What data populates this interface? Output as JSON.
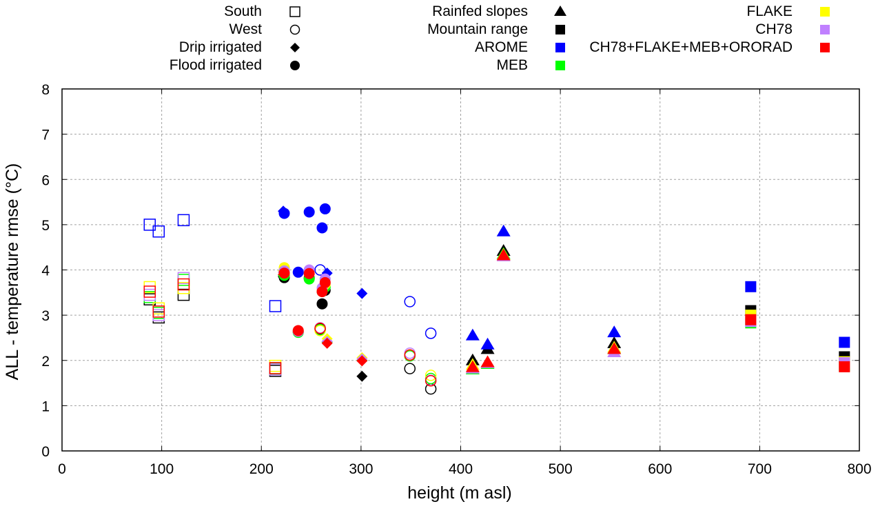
{
  "chart_data": {
    "type": "scatter",
    "title": "",
    "xlabel": "height (m asl)",
    "ylabel": "ALL - temperature rmse (°C)",
    "xlim": [
      0,
      800
    ],
    "ylim": [
      0,
      8
    ],
    "xticks": [
      "0",
      "100",
      "200",
      "300",
      "400",
      "500",
      "600",
      "700",
      "800"
    ],
    "yticks": [
      "0",
      "1",
      "2",
      "3",
      "4",
      "5",
      "6",
      "7",
      "8"
    ],
    "grid": true,
    "legend_placement": "top, outside plot",
    "legend_shapes": [
      {
        "label": "South",
        "symbol": "open-square"
      },
      {
        "label": "West",
        "symbol": "open-circle"
      },
      {
        "label": "Drip irrigated",
        "symbol": "filled-diamond"
      },
      {
        "label": "Flood irrigated",
        "symbol": "filled-circle"
      },
      {
        "label": "Rainfed slopes",
        "symbol": "filled-triangle"
      },
      {
        "label": "Mountain range",
        "symbol": "filled-square"
      }
    ],
    "legend_models": [
      {
        "label": "AROME",
        "color": "#0000ff"
      },
      {
        "label": "MEB",
        "color": "#00ff00"
      },
      {
        "label": "FLAKE",
        "color": "#ffff00"
      },
      {
        "label": "CH78",
        "color": "#c080ff"
      },
      {
        "label": "CH78+FLAKE+MEB+ORORAD",
        "color": "#ff0000"
      }
    ],
    "reference_color": "#000000",
    "series": [
      {
        "name": "South",
        "symbol": "open-square",
        "points": [
          {
            "x": 88,
            "model": "AROME",
            "y": 5.0
          },
          {
            "x": 88,
            "model": "reference",
            "y": 3.35
          },
          {
            "x": 88,
            "model": "MEB",
            "y": 3.4
          },
          {
            "x": 88,
            "model": "FLAKE",
            "y": 3.62
          },
          {
            "x": 88,
            "model": "CH78",
            "y": 3.45
          },
          {
            "x": 88,
            "model": "CH78+FLAKE+MEB+ORORAD",
            "y": 3.52
          },
          {
            "x": 97,
            "model": "AROME",
            "y": 4.85
          },
          {
            "x": 97,
            "model": "reference",
            "y": 2.95
          },
          {
            "x": 97,
            "model": "MEB",
            "y": 3.05
          },
          {
            "x": 97,
            "model": "FLAKE",
            "y": 3.15
          },
          {
            "x": 97,
            "model": "CH78",
            "y": 3.0
          },
          {
            "x": 97,
            "model": "CH78+FLAKE+MEB+ORORAD",
            "y": 3.08
          },
          {
            "x": 122,
            "model": "AROME",
            "y": 5.1
          },
          {
            "x": 122,
            "model": "reference",
            "y": 3.45
          },
          {
            "x": 122,
            "model": "MEB",
            "y": 3.78
          },
          {
            "x": 122,
            "model": "FLAKE",
            "y": 3.6
          },
          {
            "x": 122,
            "model": "CH78",
            "y": 3.82
          },
          {
            "x": 122,
            "model": "CH78+FLAKE+MEB+ORORAD",
            "y": 3.68
          },
          {
            "x": 214,
            "model": "AROME",
            "y": 3.2
          },
          {
            "x": 214,
            "model": "reference",
            "y": 1.77
          },
          {
            "x": 214,
            "model": "MEB",
            "y": 1.82
          },
          {
            "x": 214,
            "model": "FLAKE",
            "y": 1.88
          },
          {
            "x": 214,
            "model": "CH78",
            "y": 1.8
          },
          {
            "x": 214,
            "model": "CH78+FLAKE+MEB+ORORAD",
            "y": 1.83
          }
        ]
      },
      {
        "name": "West",
        "symbol": "open-circle",
        "points": [
          {
            "x": 259,
            "model": "AROME",
            "y": 4.0
          },
          {
            "x": 259,
            "model": "reference",
            "y": 2.7
          },
          {
            "x": 259,
            "model": "MEB",
            "y": 2.68
          },
          {
            "x": 259,
            "model": "FLAKE",
            "y": 2.66
          },
          {
            "x": 259,
            "model": "CH78",
            "y": 2.72
          },
          {
            "x": 259,
            "model": "CH78+FLAKE+MEB+ORORAD",
            "y": 2.71
          },
          {
            "x": 349,
            "model": "AROME",
            "y": 3.3
          },
          {
            "x": 349,
            "model": "reference",
            "y": 1.82
          },
          {
            "x": 349,
            "model": "MEB",
            "y": 2.1
          },
          {
            "x": 349,
            "model": "FLAKE",
            "y": 2.12
          },
          {
            "x": 349,
            "model": "CH78",
            "y": 2.16
          },
          {
            "x": 349,
            "model": "CH78+FLAKE+MEB+ORORAD",
            "y": 2.12
          },
          {
            "x": 370,
            "model": "AROME",
            "y": 2.6
          },
          {
            "x": 370,
            "model": "reference",
            "y": 1.37
          },
          {
            "x": 370,
            "model": "MEB",
            "y": 1.6
          },
          {
            "x": 370,
            "model": "FLAKE",
            "y": 1.67
          },
          {
            "x": 370,
            "model": "CH78",
            "y": 1.56
          },
          {
            "x": 370,
            "model": "CH78+FLAKE+MEB+ORORAD",
            "y": 1.55
          }
        ]
      },
      {
        "name": "Drip irrigated",
        "symbol": "filled-diamond",
        "points": [
          {
            "x": 222,
            "model": "AROME",
            "y": 5.3
          },
          {
            "x": 222,
            "model": "reference",
            "y": 3.85
          },
          {
            "x": 222,
            "model": "MEB",
            "y": 3.88
          },
          {
            "x": 222,
            "model": "FLAKE",
            "y": 3.98
          },
          {
            "x": 222,
            "model": "CH78",
            "y": 3.95
          },
          {
            "x": 222,
            "model": "CH78+FLAKE+MEB+ORORAD",
            "y": 3.9
          },
          {
            "x": 266,
            "model": "AROME",
            "y": 3.93
          },
          {
            "x": 266,
            "model": "reference",
            "y": 2.42
          },
          {
            "x": 266,
            "model": "MEB",
            "y": 2.4
          },
          {
            "x": 266,
            "model": "FLAKE",
            "y": 2.48
          },
          {
            "x": 266,
            "model": "CH78",
            "y": 2.42
          },
          {
            "x": 266,
            "model": "CH78+FLAKE+MEB+ORORAD",
            "y": 2.38
          },
          {
            "x": 301,
            "model": "AROME",
            "y": 3.48
          },
          {
            "x": 301,
            "model": "reference",
            "y": 1.65
          },
          {
            "x": 301,
            "model": "MEB",
            "y": 2.0
          },
          {
            "x": 301,
            "model": "FLAKE",
            "y": 2.06
          },
          {
            "x": 301,
            "model": "CH78",
            "y": 2.03
          },
          {
            "x": 301,
            "model": "CH78+FLAKE+MEB+ORORAD",
            "y": 1.99
          }
        ]
      },
      {
        "name": "Flood irrigated",
        "symbol": "filled-circle",
        "points": [
          {
            "x": 223,
            "model": "AROME",
            "y": 5.25
          },
          {
            "x": 223,
            "model": "reference",
            "y": 3.83
          },
          {
            "x": 223,
            "model": "MEB",
            "y": 3.88
          },
          {
            "x": 223,
            "model": "FLAKE",
            "y": 4.05
          },
          {
            "x": 223,
            "model": "CH78",
            "y": 3.98
          },
          {
            "x": 223,
            "model": "CH78+FLAKE+MEB+ORORAD",
            "y": 3.93
          },
          {
            "x": 237,
            "model": "AROME",
            "y": 3.95
          },
          {
            "x": 237,
            "model": "reference",
            "y": 2.63
          },
          {
            "x": 237,
            "model": "MEB",
            "y": 2.62
          },
          {
            "x": 237,
            "model": "FLAKE",
            "y": 2.65
          },
          {
            "x": 237,
            "model": "CH78",
            "y": 2.64
          },
          {
            "x": 237,
            "model": "CH78+FLAKE+MEB+ORORAD",
            "y": 2.66
          },
          {
            "x": 248,
            "model": "AROME",
            "y": 5.28
          },
          {
            "x": 248,
            "model": "reference",
            "y": 3.82
          },
          {
            "x": 248,
            "model": "MEB",
            "y": 3.8
          },
          {
            "x": 248,
            "model": "FLAKE",
            "y": 3.95
          },
          {
            "x": 248,
            "model": "CH78",
            "y": 4.0
          },
          {
            "x": 248,
            "model": "CH78+FLAKE+MEB+ORORAD",
            "y": 3.92
          },
          {
            "x": 261,
            "model": "AROME",
            "y": 4.93
          },
          {
            "x": 261,
            "model": "reference",
            "y": 3.25
          },
          {
            "x": 261,
            "model": "MEB",
            "y": 3.52
          },
          {
            "x": 261,
            "model": "FLAKE",
            "y": 3.58
          },
          {
            "x": 261,
            "model": "CH78",
            "y": 3.6
          },
          {
            "x": 261,
            "model": "CH78+FLAKE+MEB+ORORAD",
            "y": 3.52
          },
          {
            "x": 264,
            "model": "AROME",
            "y": 5.35
          },
          {
            "x": 264,
            "model": "reference",
            "y": 3.55
          },
          {
            "x": 264,
            "model": "MEB",
            "y": 3.62
          },
          {
            "x": 264,
            "model": "FLAKE",
            "y": 3.68
          },
          {
            "x": 264,
            "model": "CH78",
            "y": 3.8
          },
          {
            "x": 264,
            "model": "CH78+FLAKE+MEB+ORORAD",
            "y": 3.72
          }
        ]
      },
      {
        "name": "Rainfed slopes",
        "symbol": "filled-triangle",
        "points": [
          {
            "x": 412,
            "model": "AROME",
            "y": 2.55
          },
          {
            "x": 412,
            "model": "reference",
            "y": 2.0
          },
          {
            "x": 412,
            "model": "MEB",
            "y": 1.8
          },
          {
            "x": 412,
            "model": "FLAKE",
            "y": 1.9
          },
          {
            "x": 412,
            "model": "CH78",
            "y": 1.82
          },
          {
            "x": 412,
            "model": "CH78+FLAKE+MEB+ORORAD",
            "y": 1.85
          },
          {
            "x": 427,
            "model": "AROME",
            "y": 2.35
          },
          {
            "x": 427,
            "model": "reference",
            "y": 2.25
          },
          {
            "x": 427,
            "model": "MEB",
            "y": 1.92
          },
          {
            "x": 427,
            "model": "FLAKE",
            "y": 1.95
          },
          {
            "x": 427,
            "model": "CH78",
            "y": 1.94
          },
          {
            "x": 427,
            "model": "CH78+FLAKE+MEB+ORORAD",
            "y": 1.96
          },
          {
            "x": 443,
            "model": "AROME",
            "y": 4.85
          },
          {
            "x": 443,
            "model": "reference",
            "y": 4.42
          },
          {
            "x": 443,
            "model": "MEB",
            "y": 4.35
          },
          {
            "x": 443,
            "model": "FLAKE",
            "y": 4.33
          },
          {
            "x": 443,
            "model": "CH78",
            "y": 4.3
          },
          {
            "x": 443,
            "model": "CH78+FLAKE+MEB+ORORAD",
            "y": 4.32
          },
          {
            "x": 554,
            "model": "AROME",
            "y": 2.62
          },
          {
            "x": 554,
            "model": "reference",
            "y": 2.38
          },
          {
            "x": 554,
            "model": "MEB",
            "y": 2.25
          },
          {
            "x": 554,
            "model": "FLAKE",
            "y": 2.28
          },
          {
            "x": 554,
            "model": "CH78",
            "y": 2.18
          },
          {
            "x": 554,
            "model": "CH78+FLAKE+MEB+ORORAD",
            "y": 2.25
          }
        ]
      },
      {
        "name": "Mountain range",
        "symbol": "filled-square",
        "points": [
          {
            "x": 691,
            "model": "AROME",
            "y": 3.63
          },
          {
            "x": 691,
            "model": "reference",
            "y": 3.1
          },
          {
            "x": 691,
            "model": "MEB",
            "y": 2.83
          },
          {
            "x": 691,
            "model": "FLAKE",
            "y": 3.0
          },
          {
            "x": 691,
            "model": "CH78",
            "y": 2.86
          },
          {
            "x": 691,
            "model": "CH78+FLAKE+MEB+ORORAD",
            "y": 2.9
          },
          {
            "x": 785,
            "model": "AROME",
            "y": 2.4
          },
          {
            "x": 785,
            "model": "reference",
            "y": 2.08
          },
          {
            "x": 785,
            "model": "MEB",
            "y": 1.88
          },
          {
            "x": 785,
            "model": "FLAKE",
            "y": 1.97
          },
          {
            "x": 785,
            "model": "CH78",
            "y": 1.95
          },
          {
            "x": 785,
            "model": "CH78+FLAKE+MEB+ORORAD",
            "y": 1.86
          }
        ]
      }
    ]
  }
}
